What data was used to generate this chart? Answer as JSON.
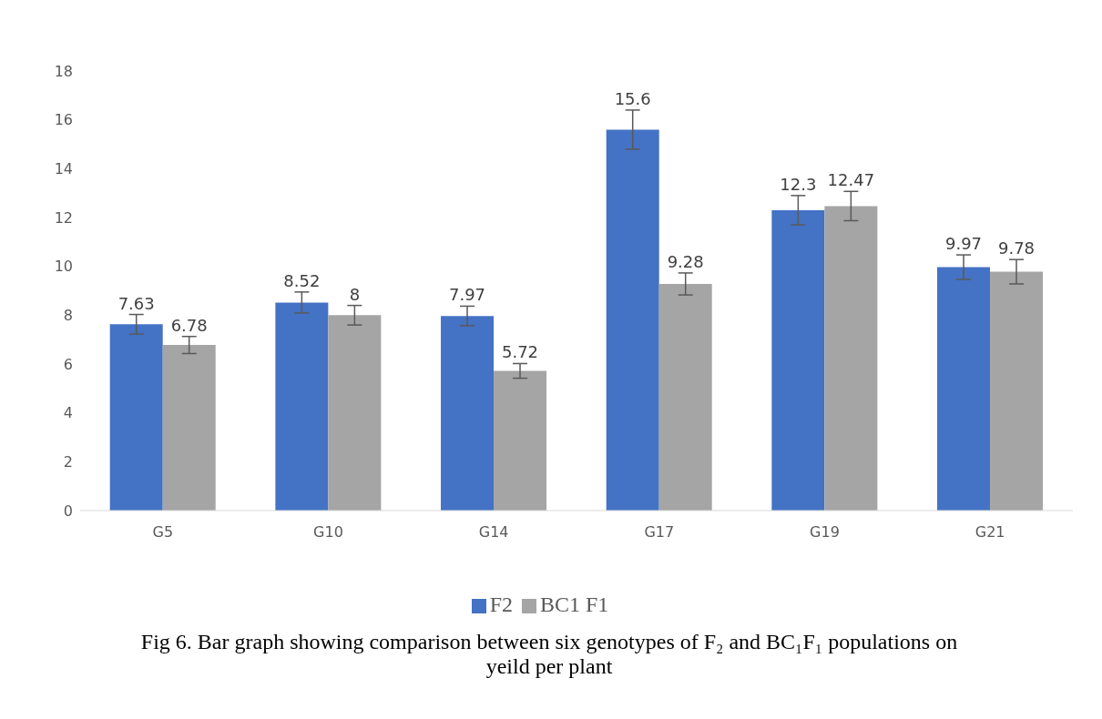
{
  "chart_data": {
    "type": "bar",
    "categories": [
      "G5",
      "G10",
      "G14",
      "G17",
      "G19",
      "G21"
    ],
    "series": [
      {
        "name": "F2",
        "color": "#4472c4",
        "values": [
          7.63,
          8.52,
          7.97,
          15.6,
          12.3,
          9.97
        ],
        "errors": [
          0.4,
          0.43,
          0.4,
          0.8,
          0.6,
          0.5
        ]
      },
      {
        "name": "BC1 F1",
        "color": "#a5a5a5",
        "values": [
          6.78,
          8,
          5.72,
          9.28,
          12.47,
          9.78
        ],
        "errors": [
          0.35,
          0.4,
          0.3,
          0.45,
          0.6,
          0.5
        ]
      }
    ],
    "ylim": [
      0,
      18
    ],
    "yticks": [
      0,
      2,
      4,
      6,
      8,
      10,
      12,
      14,
      16,
      18
    ],
    "grid": false,
    "legend": "bottom",
    "data_labels": true,
    "annotations": [
      "Fig 6. Bar graph showing comparison between six genotypes of F₂ and BC₁F₁ populations on yeild per plant"
    ]
  }
}
